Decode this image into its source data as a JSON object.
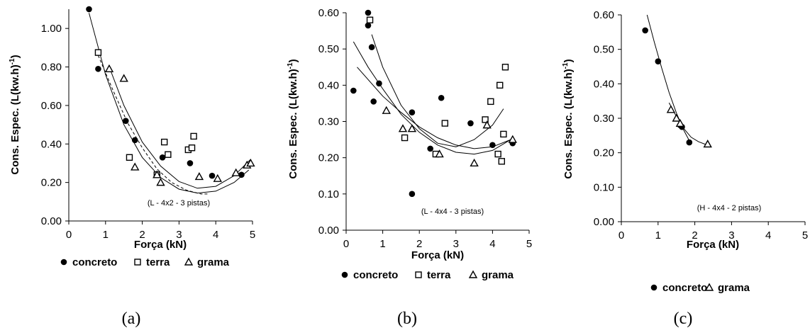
{
  "chart_data": [
    {
      "type": "scatter",
      "panel_label": "(a)",
      "annotation": "(L - 4x2 -  3 pistas)",
      "xlabel": "Força (kN)",
      "ylabel": "Cons. Espec. (L(kw.h)-1)",
      "xlim": [
        0,
        5
      ],
      "ylim": [
        0,
        1.1
      ],
      "xticks": [
        "0",
        "1",
        "2",
        "3",
        "4",
        "5"
      ],
      "yticks": [
        "0.00",
        "0.20",
        "0.40",
        "0.60",
        "0.80",
        "1.00"
      ],
      "legend_position": "bottom",
      "series": [
        {
          "name": "concreto",
          "marker": "circle",
          "points": [
            [
              0.55,
              1.1
            ],
            [
              0.8,
              0.79
            ],
            [
              1.55,
              0.52
            ],
            [
              1.8,
              0.42
            ],
            [
              2.55,
              0.33
            ],
            [
              3.3,
              0.3
            ],
            [
              3.9,
              0.235
            ],
            [
              4.7,
              0.24
            ]
          ],
          "fit": [
            [
              0.55,
              1.08
            ],
            [
              1.0,
              0.76
            ],
            [
              1.5,
              0.5
            ],
            [
              2.0,
              0.33
            ],
            [
              2.5,
              0.225
            ],
            [
              3.0,
              0.165
            ],
            [
              3.5,
              0.145
            ],
            [
              4.0,
              0.155
            ],
            [
              4.5,
              0.2
            ],
            [
              4.9,
              0.265
            ]
          ]
        },
        {
          "name": "terra",
          "marker": "square",
          "points": [
            [
              0.8,
              0.875
            ],
            [
              1.65,
              0.33
            ],
            [
              2.4,
              0.24
            ],
            [
              2.6,
              0.41
            ],
            [
              2.7,
              0.345
            ],
            [
              3.25,
              0.37
            ],
            [
              3.35,
              0.38
            ],
            [
              3.4,
              0.44
            ]
          ],
          "fit": [
            [
              0.8,
              0.86
            ],
            [
              1.2,
              0.68
            ],
            [
              1.6,
              0.51
            ],
            [
              2.0,
              0.38
            ],
            [
              2.4,
              0.27
            ],
            [
              2.8,
              0.2
            ],
            [
              3.2,
              0.16
            ],
            [
              3.6,
              0.14
            ],
            [
              3.8,
              0.14
            ]
          ],
          "fit_style": "dashed"
        },
        {
          "name": "grama",
          "marker": "triangle",
          "points": [
            [
              1.1,
              0.79
            ],
            [
              1.5,
              0.74
            ],
            [
              1.8,
              0.28
            ],
            [
              2.4,
              0.24
            ],
            [
              2.5,
              0.2
            ],
            [
              3.55,
              0.23
            ],
            [
              4.05,
              0.22
            ],
            [
              4.55,
              0.25
            ],
            [
              4.85,
              0.29
            ],
            [
              4.95,
              0.3
            ]
          ],
          "fit": [
            [
              1.1,
              0.8
            ],
            [
              1.5,
              0.6
            ],
            [
              2.0,
              0.41
            ],
            [
              2.5,
              0.285
            ],
            [
              3.0,
              0.205
            ],
            [
              3.5,
              0.17
            ],
            [
              4.0,
              0.18
            ],
            [
              4.5,
              0.235
            ],
            [
              4.95,
              0.32
            ]
          ]
        }
      ]
    },
    {
      "type": "scatter",
      "panel_label": "(b)",
      "annotation": "(L - 4x4 -  3 pistas)",
      "xlabel": "Força (kN)",
      "ylabel": "Cons. Espec. (L(kw.h)-1)",
      "xlim": [
        0,
        5
      ],
      "ylim": [
        0,
        0.6
      ],
      "xticks": [
        "0",
        "1",
        "2",
        "3",
        "4",
        "5"
      ],
      "yticks": [
        "0.00",
        "0.10",
        "0.20",
        "0.30",
        "0.40",
        "0.50",
        "0.60"
      ],
      "legend_position": "bottom",
      "series": [
        {
          "name": "concreto",
          "marker": "circle",
          "points": [
            [
              0.2,
              0.385
            ],
            [
              0.6,
              0.6
            ],
            [
              0.6,
              0.565
            ],
            [
              0.7,
              0.505
            ],
            [
              0.75,
              0.355
            ],
            [
              0.9,
              0.405
            ],
            [
              1.8,
              0.1
            ],
            [
              1.8,
              0.325
            ],
            [
              2.3,
              0.225
            ],
            [
              2.6,
              0.365
            ],
            [
              3.4,
              0.295
            ],
            [
              4.0,
              0.235
            ],
            [
              4.55,
              0.24
            ]
          ],
          "fit": [
            [
              0.2,
              0.52
            ],
            [
              0.6,
              0.45
            ],
            [
              1.0,
              0.39
            ],
            [
              1.5,
              0.32
            ],
            [
              2.0,
              0.27
            ],
            [
              2.5,
              0.235
            ],
            [
              3.0,
              0.215
            ],
            [
              3.5,
              0.21
            ],
            [
              4.0,
              0.22
            ],
            [
              4.5,
              0.25
            ]
          ]
        },
        {
          "name": "terra",
          "marker": "square",
          "points": [
            [
              0.65,
              0.58
            ],
            [
              1.6,
              0.255
            ],
            [
              2.45,
              0.21
            ],
            [
              2.7,
              0.295
            ],
            [
              3.8,
              0.305
            ],
            [
              3.95,
              0.355
            ],
            [
              4.15,
              0.21
            ],
            [
              4.2,
              0.4
            ],
            [
              4.25,
              0.19
            ],
            [
              4.3,
              0.265
            ],
            [
              4.35,
              0.45
            ]
          ],
          "fit": [
            [
              0.7,
              0.54
            ],
            [
              1.0,
              0.45
            ],
            [
              1.5,
              0.345
            ],
            [
              2.0,
              0.28
            ],
            [
              2.5,
              0.24
            ],
            [
              3.0,
              0.23
            ],
            [
              3.5,
              0.25
            ],
            [
              4.0,
              0.29
            ],
            [
              4.3,
              0.335
            ]
          ]
        },
        {
          "name": "grama",
          "marker": "triangle",
          "points": [
            [
              1.1,
              0.33
            ],
            [
              1.55,
              0.28
            ],
            [
              1.8,
              0.28
            ],
            [
              2.55,
              0.21
            ],
            [
              3.5,
              0.185
            ],
            [
              3.85,
              0.29
            ],
            [
              4.55,
              0.25
            ]
          ],
          "fit": [
            [
              0.3,
              0.45
            ],
            [
              1.0,
              0.37
            ],
            [
              1.5,
              0.325
            ],
            [
              2.0,
              0.285
            ],
            [
              2.5,
              0.255
            ],
            [
              3.0,
              0.235
            ],
            [
              3.5,
              0.225
            ],
            [
              4.0,
              0.23
            ],
            [
              4.5,
              0.25
            ]
          ]
        }
      ]
    },
    {
      "type": "scatter",
      "panel_label": "(c)",
      "annotation": "(H - 4x4 - 2  pistas)",
      "xlabel": "Força (kN)",
      "ylabel": "Cons. Espec. (L(kw.h)-1)",
      "xlim": [
        0,
        5
      ],
      "ylim": [
        0,
        0.6
      ],
      "xticks": [
        "0",
        "1",
        "2",
        "3",
        "4",
        "5"
      ],
      "yticks": [
        "0.00",
        "0.10",
        "0.20",
        "0.30",
        "0.40",
        "0.50",
        "0.60"
      ],
      "legend_position": "bottom",
      "series": [
        {
          "name": "concreto",
          "marker": "circle",
          "points": [
            [
              0.65,
              0.555
            ],
            [
              1.0,
              0.465
            ],
            [
              1.6,
              0.28
            ],
            [
              1.65,
              0.275
            ],
            [
              1.85,
              0.23
            ]
          ],
          "fit": [
            [
              0.7,
              0.6
            ],
            [
              0.9,
              0.52
            ],
            [
              1.1,
              0.445
            ],
            [
              1.3,
              0.375
            ],
            [
              1.5,
              0.315
            ],
            [
              1.7,
              0.265
            ],
            [
              1.9,
              0.225
            ]
          ]
        },
        {
          "name": "grama",
          "marker": "triangle",
          "points": [
            [
              1.35,
              0.325
            ],
            [
              1.5,
              0.3
            ],
            [
              1.6,
              0.285
            ],
            [
              2.35,
              0.225
            ]
          ],
          "fit": [
            [
              1.3,
              0.345
            ],
            [
              1.5,
              0.305
            ],
            [
              1.7,
              0.27
            ],
            [
              1.9,
              0.245
            ],
            [
              2.1,
              0.232
            ],
            [
              2.35,
              0.222
            ]
          ]
        }
      ]
    }
  ]
}
